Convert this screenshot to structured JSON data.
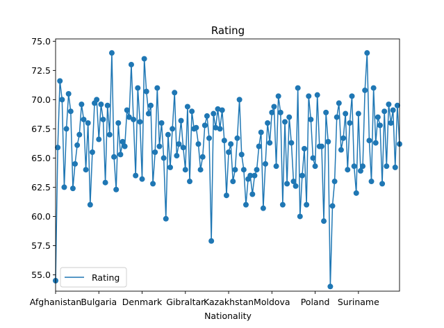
{
  "chart_data": {
    "type": "line",
    "title": "Rating",
    "xlabel": "Nationality",
    "ylabel": "",
    "ylim": [
      53.6,
      75.2
    ],
    "yticks": [
      55.0,
      57.5,
      60.0,
      62.5,
      65.0,
      67.5,
      70.0,
      72.5,
      75.0
    ],
    "xtick_labels": [
      "Afghanistan",
      "Bulgaria",
      "Denmark",
      "Gibraltar",
      "Kazakhstan",
      "Moldova",
      "Poland",
      "Suriname"
    ],
    "xtick_indices": [
      0,
      20,
      40,
      60,
      80,
      100,
      120,
      140
    ],
    "grid": false,
    "legend_location": "lower left",
    "series": [
      {
        "name": "Rating",
        "color": "#1f77b4",
        "values": [
          54.5,
          65.9,
          71.6,
          70.0,
          62.5,
          67.5,
          70.5,
          69.0,
          62.4,
          64.5,
          66.1,
          67.0,
          69.6,
          68.3,
          64.0,
          68.0,
          61.0,
          65.5,
          69.7,
          70.0,
          66.6,
          69.6,
          68.3,
          62.9,
          69.5,
          67.0,
          74.0,
          65.1,
          62.3,
          68.0,
          65.3,
          66.4,
          66.0,
          69.1,
          68.5,
          73.0,
          68.3,
          63.5,
          71.0,
          68.1,
          63.2,
          73.5,
          70.7,
          68.8,
          69.5,
          62.8,
          65.5,
          71.0,
          66.0,
          68.0,
          65.0,
          59.8,
          67.0,
          64.2,
          67.5,
          70.6,
          65.2,
          66.2,
          68.2,
          65.9,
          64.0,
          69.4,
          63.0,
          69.0,
          67.5,
          67.6,
          66.2,
          64.0,
          65.1,
          67.8,
          68.6,
          66.7,
          57.9,
          68.8,
          67.6,
          69.2,
          67.5,
          69.1,
          66.5,
          61.8,
          65.5,
          66.2,
          63.0,
          64.0,
          66.7,
          70.0,
          65.3,
          64.0,
          61.0,
          63.2,
          63.5,
          61.9,
          63.5,
          64.0,
          66.0,
          67.2,
          60.7,
          64.5,
          68.0,
          66.3,
          68.9,
          69.4,
          64.3,
          70.3,
          68.9,
          61.0,
          68.1,
          62.8,
          68.5,
          66.3,
          63.0,
          62.6,
          71.0,
          60.0,
          63.5,
          65.8,
          61.0,
          70.3,
          68.3,
          65.0,
          64.3,
          70.4,
          66.0,
          66.0,
          59.6,
          68.9,
          66.4,
          54.0,
          60.9,
          63.0,
          68.5,
          69.7,
          65.7,
          66.7,
          68.8,
          64.0,
          68.0,
          70.3,
          64.3,
          62.0,
          68.8,
          63.9,
          64.3,
          70.8,
          74.0,
          66.5,
          63.0,
          71.0,
          66.3,
          68.5,
          67.8,
          62.8,
          69.0,
          64.3,
          69.6,
          68.0,
          69.1,
          64.2,
          69.5,
          66.2
        ]
      }
    ]
  }
}
